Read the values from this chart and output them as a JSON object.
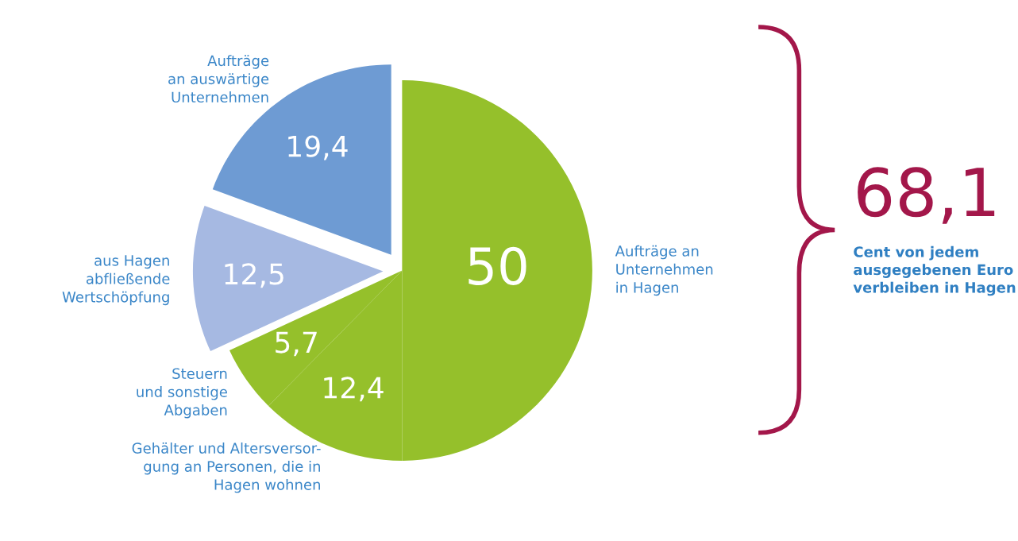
{
  "chart_data": {
    "type": "pie",
    "categories": [
      "Aufträge an\nUnternehmen\nin Hagen",
      "Gehälter und Altersversor-\ngung an Personen, die in\nHagen wohnen",
      "Steuern\nund sonstige\nAbgaben",
      "aus Hagen\nabfließende\nWertschöpfung",
      "Aufträge\nan auswärtige\nUnternehmen"
    ],
    "values": [
      50,
      12.4,
      5.7,
      12.5,
      19.4
    ],
    "value_labels": [
      "50",
      "12,4",
      "5,7",
      "12,5",
      "19,4"
    ],
    "colors": [
      "#95c02b",
      "#95c02b",
      "#95c02b",
      "#a6b9e2",
      "#6e9bd3"
    ],
    "annotations": [
      "68,1",
      "Cent von jedem\nausgegebenen Euro\nverbleiben in Hagen"
    ],
    "legend": false
  }
}
